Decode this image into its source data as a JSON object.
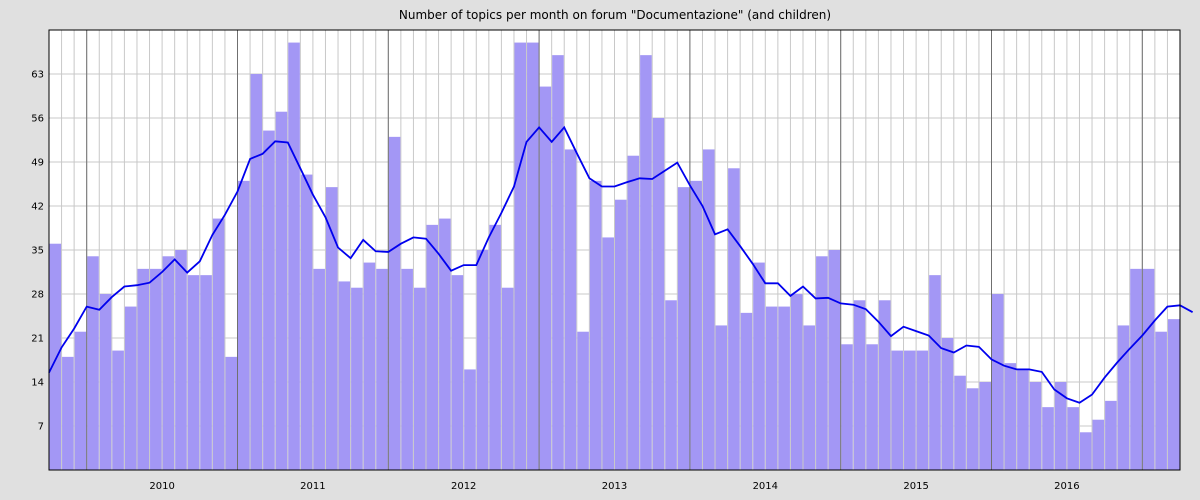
{
  "chart_data": {
    "type": "bar",
    "title": "Number of topics per month on forum \"Documentazione\" (and children)",
    "xlabel": "",
    "ylabel": "",
    "ylim": [
      0,
      70
    ],
    "y_ticks": [
      7,
      14,
      21,
      28,
      35,
      42,
      49,
      56,
      63
    ],
    "year_labels": [
      "2010",
      "2011",
      "2012",
      "2013",
      "2014",
      "2015",
      "2016"
    ],
    "grid": true,
    "colors": {
      "bar": "#a397f5",
      "line": "#0000ee",
      "plot_bg": "#ffffff",
      "grid": "#c8c8c8",
      "year_line": "#707070"
    },
    "series": [
      {
        "name": "",
        "type": "bar",
        "values": [
          36,
          18,
          22,
          34,
          28,
          19,
          26,
          32,
          32,
          34,
          35,
          31,
          31,
          40,
          18,
          46,
          63,
          54,
          57,
          68,
          47,
          32,
          45,
          30,
          29,
          33,
          32,
          53,
          32,
          29,
          39,
          40,
          31,
          16,
          35,
          39,
          29,
          68,
          68,
          61,
          66,
          51,
          22,
          46,
          37,
          43,
          50,
          66,
          56,
          27,
          45,
          46,
          51,
          23,
          48,
          25,
          33,
          26,
          26,
          28,
          23,
          34,
          35,
          20,
          27,
          20,
          27,
          19,
          19,
          19,
          31,
          21,
          15,
          13,
          14,
          28,
          17,
          16,
          14,
          10,
          14,
          10,
          6,
          8,
          11,
          23,
          32,
          32,
          22,
          24
        ]
      },
      {
        "name": "",
        "type": "line",
        "values": [
          15.5,
          19.5,
          22.5,
          26,
          25.5,
          27.5,
          29.2,
          29.4,
          29.8,
          31.5,
          33.5,
          31.4,
          33.2,
          37.4,
          40.6,
          44.3,
          49.5,
          50.3,
          52.3,
          52.1,
          48,
          43.8,
          40.2,
          35.4,
          33.7,
          36.6,
          34.8,
          34.7,
          36,
          37,
          36.8,
          34.4,
          31.7,
          32.6,
          32.6,
          37,
          40.9,
          45.1,
          52.2,
          54.5,
          52.2,
          54.5,
          50.4,
          46.4,
          45.1,
          45.1,
          45.8,
          46.4,
          46.3,
          47.6,
          48.9,
          45.3,
          42,
          37.5,
          38.3,
          35.6,
          32.8,
          29.7,
          29.7,
          27.7,
          29.2,
          27.3,
          27.4,
          26.5,
          26.3,
          25.6,
          23.6,
          21.3,
          22.8,
          22.1,
          21.4,
          19.4,
          18.7,
          19.8,
          19.6,
          17.6,
          16.6,
          16,
          16,
          15.6,
          12.8,
          11.4,
          10.7,
          12,
          14.7,
          17.1,
          19.3,
          21.4,
          23.8,
          26,
          26.2,
          25.1
        ]
      }
    ]
  }
}
